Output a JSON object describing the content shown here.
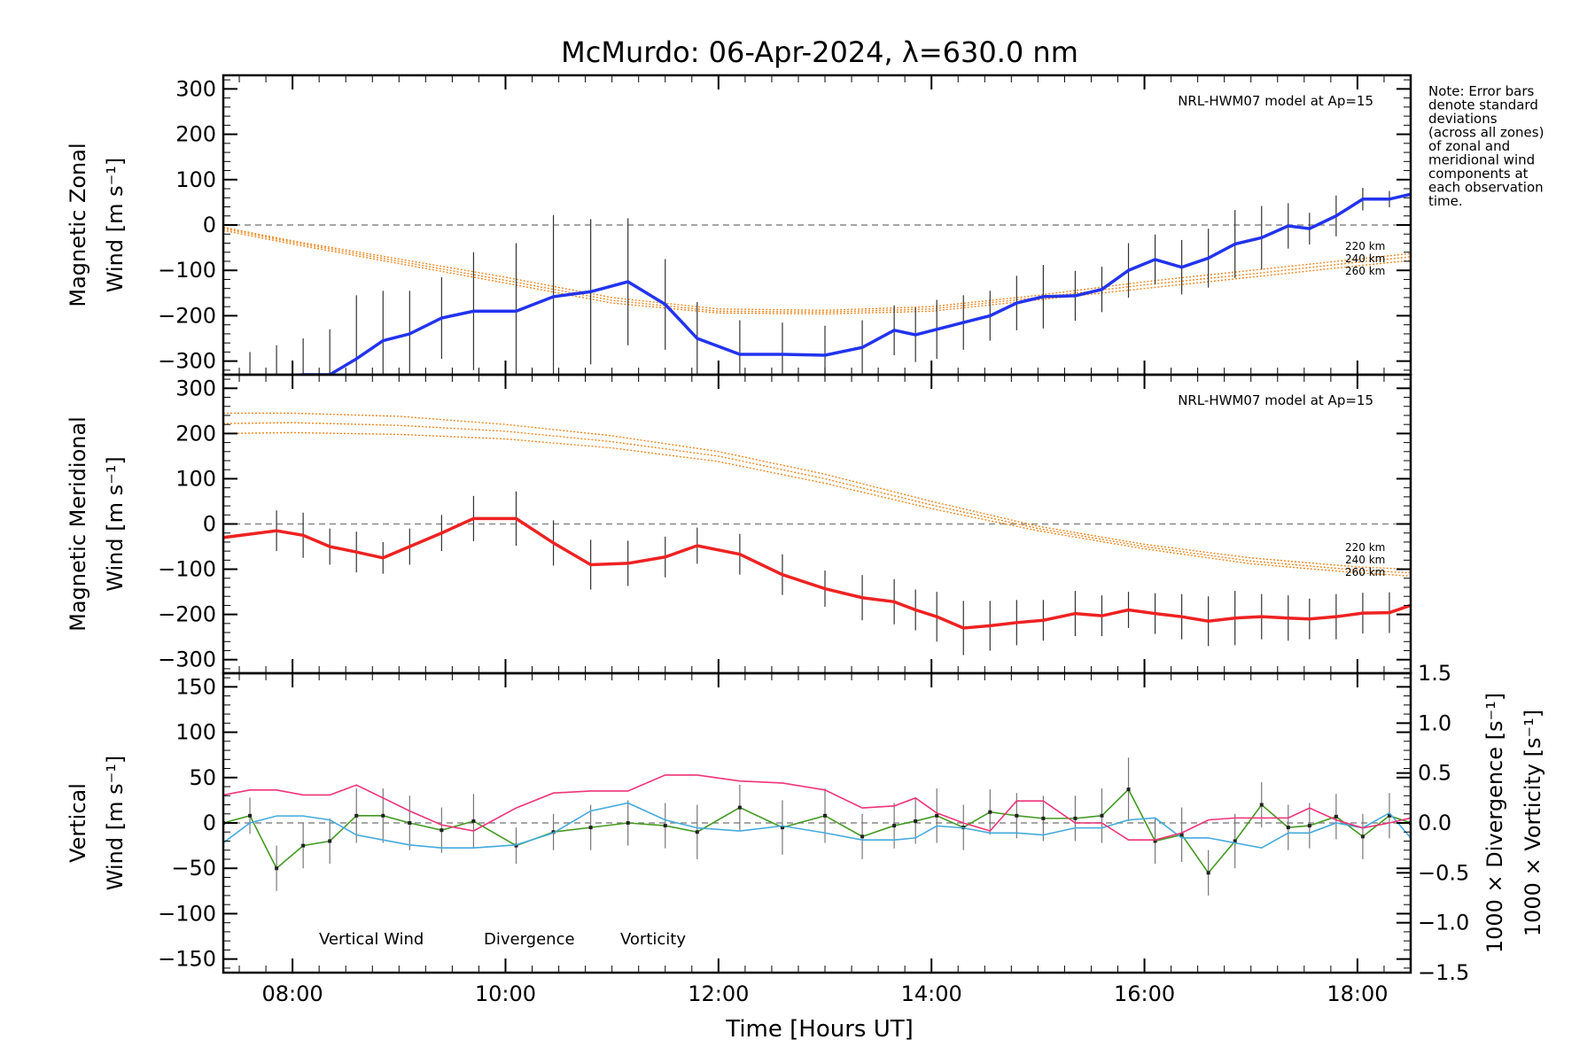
{
  "chart_data": {
    "type": "line",
    "title": "McMurdo: 06-Apr-2024, λ=630.0 nm",
    "xlabel": "Time [Hours UT]",
    "x_ticks": [
      "08:00",
      "10:00",
      "12:00",
      "14:00",
      "16:00",
      "18:00"
    ],
    "x_tick_values": [
      8,
      10,
      12,
      14,
      16,
      18
    ],
    "xlim": [
      7.35,
      18.5
    ],
    "note": [
      "Note: Error bars",
      "denote standard",
      "deviations",
      "(across all zones)",
      "of zonal and",
      "meridional wind",
      "components at",
      "each observation",
      "time."
    ],
    "panels": [
      {
        "id": "zonal",
        "ylabel_lines": [
          "Magnetic Zonal",
          "Wind [m s⁻¹]"
        ],
        "ylim": [
          -330,
          330
        ],
        "yticks": [
          300,
          200,
          100,
          0,
          -100,
          -200,
          -300
        ],
        "model_label": "NRL-HWM07 model at Ap=15",
        "model_altitudes": [
          "220 km",
          "240 km",
          "260 km"
        ],
        "series": [
          {
            "color": "#2233ee",
            "x": [
              7.6,
              7.85,
              8.1,
              8.35,
              8.6,
              8.85,
              9.1,
              9.4,
              9.7,
              10.1,
              10.45,
              10.8,
              11.15,
              11.5,
              11.8,
              12.2,
              12.6,
              13.0,
              13.35,
              13.65,
              13.85,
              14.05,
              14.3,
              14.55,
              14.8,
              15.05,
              15.35,
              15.6,
              15.85,
              16.1,
              16.35,
              16.6,
              16.85,
              17.1,
              17.35,
              17.55,
              17.8,
              18.05,
              18.3,
              18.5
            ],
            "y": [
              -340,
              -335,
              -330,
              -330,
              -295,
              -255,
              -240,
              -205,
              -190,
              -190,
              -158,
              -147,
              -125,
              -175,
              -250,
              -285,
              -285,
              -287,
              -270,
              -232,
              -242,
              -230,
              -215,
              -200,
              -172,
              -158,
              -156,
              -142,
              -100,
              -76,
              -93,
              -73,
              -42,
              -28,
              -2,
              -8,
              20,
              57,
              57,
              68
            ],
            "err": [
              60,
              70,
              80,
              100,
              140,
              110,
              95,
              90,
              130,
              150,
              180,
              160,
              140,
              100,
              80,
              75,
              70,
              65,
              60,
              55,
              60,
              65,
              60,
              55,
              60,
              70,
              55,
              50,
              60,
              55,
              60,
              65,
              75,
              70,
              50,
              35,
              45,
              25,
              18,
              12
            ]
          }
        ],
        "models": [
          {
            "name": "220 km",
            "x": [
              7.35,
              8.0,
              9.0,
              10.0,
              11.0,
              12.0,
              13.0,
              14.0,
              15.0,
              16.0,
              17.0,
              18.0,
              18.5
            ],
            "y": [
              -5,
              -35,
              -75,
              -115,
              -160,
              -185,
              -188,
              -180,
              -155,
              -125,
              -100,
              -75,
              -63
            ]
          },
          {
            "name": "240 km",
            "x": [
              7.35,
              8.0,
              9.0,
              10.0,
              11.0,
              12.0,
              13.0,
              14.0,
              15.0,
              16.0,
              17.0,
              18.0,
              18.5
            ],
            "y": [
              -8,
              -38,
              -80,
              -122,
              -166,
              -190,
              -192,
              -185,
              -160,
              -132,
              -108,
              -82,
              -70
            ]
          },
          {
            "name": "260 km",
            "x": [
              7.35,
              8.0,
              9.0,
              10.0,
              11.0,
              12.0,
              13.0,
              14.0,
              15.0,
              16.0,
              17.0,
              18.0,
              18.5
            ],
            "y": [
              -12,
              -42,
              -85,
              -128,
              -172,
              -194,
              -196,
              -190,
              -165,
              -140,
              -115,
              -90,
              -78
            ]
          }
        ]
      },
      {
        "id": "meridional",
        "ylabel_lines": [
          "Magnetic Meridional",
          "Wind [m s⁻¹]"
        ],
        "ylim": [
          -330,
          330
        ],
        "yticks": [
          300,
          200,
          100,
          0,
          -100,
          -200,
          -300
        ],
        "model_label": "NRL-HWM07 model at Ap=15",
        "model_altitudes": [
          "220 km",
          "240 km",
          "260 km"
        ],
        "series": [
          {
            "color": "#ee2222",
            "x": [
              7.35,
              7.85,
              8.1,
              8.35,
              8.6,
              8.85,
              9.1,
              9.4,
              9.7,
              10.1,
              10.45,
              10.8,
              11.15,
              11.5,
              11.8,
              12.2,
              12.6,
              13.0,
              13.35,
              13.65,
              13.85,
              14.05,
              14.3,
              14.55,
              14.8,
              15.05,
              15.35,
              15.6,
              15.85,
              16.1,
              16.35,
              16.6,
              16.85,
              17.1,
              17.35,
              17.55,
              17.8,
              18.05,
              18.3,
              18.5
            ],
            "y": [
              -30,
              -15,
              -25,
              -50,
              -62,
              -75,
              -50,
              -20,
              12,
              12,
              -42,
              -90,
              -87,
              -73,
              -48,
              -67,
              -112,
              -143,
              -163,
              -172,
              -190,
              -205,
              -230,
              -225,
              -218,
              -213,
              -198,
              -203,
              -190,
              -198,
              -205,
              -215,
              -208,
              -205,
              -208,
              -210,
              -205,
              -197,
              -196,
              -180
            ],
            "err": [
              40,
              45,
              50,
              40,
              45,
              35,
              40,
              40,
              50,
              60,
              50,
              55,
              50,
              45,
              40,
              45,
              45,
              40,
              50,
              50,
              45,
              55,
              60,
              55,
              50,
              45,
              50,
              45,
              40,
              45,
              50,
              55,
              60,
              50,
              50,
              45,
              50,
              45,
              45,
              40
            ]
          }
        ],
        "models": [
          {
            "name": "220 km",
            "x": [
              7.35,
              8.0,
              9.0,
              10.0,
              11.0,
              12.0,
              13.0,
              14.0,
              15.0,
              16.0,
              17.0,
              18.0,
              18.5
            ],
            "y": [
              245,
              245,
              238,
              220,
              195,
              160,
              110,
              50,
              -5,
              -45,
              -75,
              -95,
              -100
            ]
          },
          {
            "name": "240 km",
            "x": [
              7.35,
              8.0,
              9.0,
              10.0,
              11.0,
              12.0,
              13.0,
              14.0,
              15.0,
              16.0,
              17.0,
              18.0,
              18.5
            ],
            "y": [
              222,
              224,
              218,
              205,
              182,
              150,
              100,
              42,
              -10,
              -50,
              -82,
              -102,
              -108
            ]
          },
          {
            "name": "260 km",
            "x": [
              7.35,
              8.0,
              9.0,
              10.0,
              11.0,
              12.0,
              13.0,
              14.0,
              15.0,
              16.0,
              17.0,
              18.0,
              18.5
            ],
            "y": [
              200,
              202,
              198,
              188,
              168,
              138,
              90,
              34,
              -15,
              -55,
              -88,
              -108,
              -115
            ]
          }
        ]
      },
      {
        "id": "vertical",
        "ylabel_lines": [
          "Vertical",
          "Wind [m s⁻¹]"
        ],
        "ylim": [
          -165,
          165
        ],
        "yticks": [
          150,
          100,
          50,
          0,
          -50,
          -100,
          -150
        ],
        "right_axis_labels": [
          "1000 × Divergence [s⁻¹]",
          "1000 × Vorticity [s⁻¹]"
        ],
        "right_ylim": [
          -1.5,
          1.5
        ],
        "right_yticks": [
          1.5,
          1.0,
          0.5,
          0.0,
          -0.5,
          -1.0,
          -1.5
        ],
        "legend": [
          "Vertical Wind",
          "Divergence",
          "Vorticity"
        ],
        "series": [
          {
            "name": "Vertical Wind",
            "color": "#449922",
            "x": [
              7.35,
              7.6,
              7.85,
              8.1,
              8.35,
              8.6,
              8.85,
              9.1,
              9.4,
              9.7,
              10.1,
              10.45,
              10.8,
              11.15,
              11.5,
              11.8,
              12.2,
              12.6,
              13.0,
              13.35,
              13.65,
              13.85,
              14.05,
              14.3,
              14.55,
              14.8,
              15.05,
              15.35,
              15.6,
              15.85,
              16.1,
              16.35,
              16.6,
              16.85,
              17.1,
              17.35,
              17.55,
              17.8,
              18.05,
              18.3,
              18.5
            ],
            "y": [
              0,
              8,
              -50,
              -25,
              -20,
              8,
              8,
              0,
              -8,
              2,
              -25,
              -10,
              -5,
              0,
              -3,
              -10,
              17,
              -5,
              8,
              -15,
              -3,
              2,
              8,
              -5,
              12,
              8,
              5,
              5,
              8,
              37,
              -20,
              -13,
              -55,
              -20,
              20,
              -5,
              -3,
              7,
              -15,
              8,
              0
            ],
            "err": [
              15,
              20,
              25,
              25,
              25,
              30,
              30,
              30,
              25,
              30,
              20,
              20,
              25,
              25,
              25,
              30,
              25,
              30,
              30,
              25,
              25,
              25,
              30,
              25,
              25,
              25,
              25,
              25,
              30,
              35,
              25,
              30,
              25,
              30,
              25,
              25,
              25,
              25,
              25,
              25,
              15
            ]
          },
          {
            "name": "Divergence",
            "color": "#44aadd",
            "x": [
              7.35,
              7.6,
              7.85,
              8.1,
              8.35,
              8.6,
              8.85,
              9.1,
              9.4,
              9.7,
              10.1,
              10.45,
              10.8,
              11.15,
              11.5,
              11.8,
              12.2,
              12.6,
              13.0,
              13.35,
              13.65,
              13.85,
              14.05,
              14.3,
              14.55,
              14.8,
              15.05,
              15.35,
              15.6,
              15.85,
              16.1,
              16.35,
              16.6,
              16.85,
              17.1,
              17.35,
              17.55,
              17.8,
              18.05,
              18.3,
              18.5
            ],
            "y": [
              -0.2,
              0.0,
              0.07,
              0.07,
              0.03,
              -0.12,
              -0.17,
              -0.22,
              -0.25,
              -0.25,
              -0.22,
              -0.1,
              0.12,
              0.2,
              0.03,
              -0.05,
              -0.08,
              -0.03,
              -0.1,
              -0.17,
              -0.17,
              -0.15,
              -0.03,
              -0.05,
              -0.1,
              -0.1,
              -0.12,
              -0.05,
              -0.05,
              0.03,
              0.05,
              -0.15,
              -0.15,
              -0.2,
              -0.25,
              -0.1,
              -0.1,
              0.0,
              -0.05,
              0.1,
              -0.15
            ]
          },
          {
            "name": "Vorticity",
            "color": "#ee3377",
            "x": [
              7.35,
              7.6,
              7.85,
              8.1,
              8.35,
              8.6,
              8.85,
              9.1,
              9.4,
              9.7,
              10.1,
              10.45,
              10.8,
              11.15,
              11.5,
              11.8,
              12.2,
              12.6,
              13.0,
              13.35,
              13.65,
              13.85,
              14.05,
              14.3,
              14.55,
              14.8,
              15.05,
              15.35,
              15.6,
              15.85,
              16.1,
              16.35,
              16.6,
              16.85,
              17.1,
              17.35,
              17.55,
              17.8,
              18.05,
              18.3,
              18.5
            ],
            "y": [
              0.28,
              0.33,
              0.33,
              0.28,
              0.28,
              0.38,
              0.25,
              0.12,
              -0.02,
              -0.08,
              0.15,
              0.3,
              0.32,
              0.32,
              0.48,
              0.48,
              0.42,
              0.4,
              0.33,
              0.15,
              0.17,
              0.25,
              0.1,
              0.0,
              -0.08,
              0.22,
              0.22,
              0.0,
              0.0,
              -0.17,
              -0.17,
              -0.1,
              0.03,
              0.05,
              0.05,
              0.05,
              0.15,
              0.03,
              -0.05,
              0.0,
              0.05
            ]
          }
        ]
      }
    ]
  }
}
